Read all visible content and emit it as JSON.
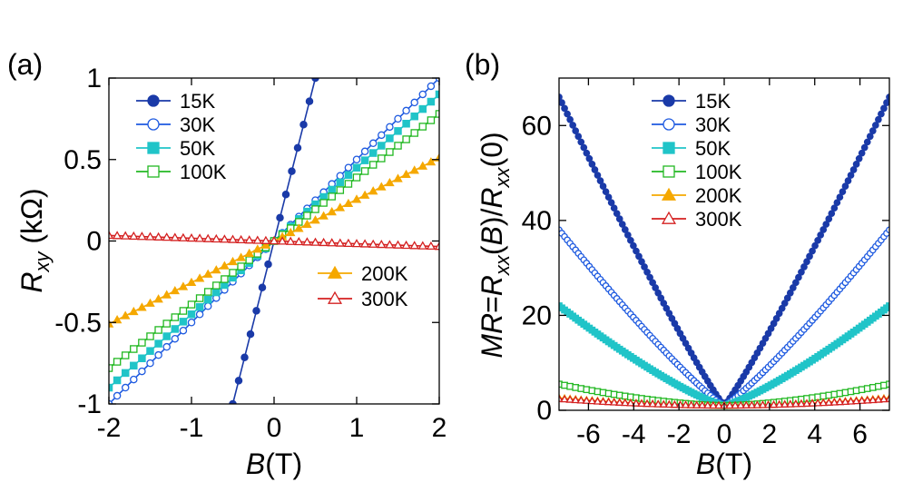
{
  "chart_data": [
    {
      "type": "line",
      "panel_label": "(a)",
      "xlabel": {
        "var": "B",
        "unit": "(T)"
      },
      "ylabel": {
        "var": "R",
        "sub": "xy",
        "unit": " (kΩ)"
      },
      "xlim": [
        -2,
        2
      ],
      "ylim": [
        -1,
        1
      ],
      "xticks": [
        -2,
        -1,
        0,
        1,
        2
      ],
      "xtick_labels": [
        "-2",
        "-1",
        "0",
        "1",
        "2"
      ],
      "yticks": [
        -1,
        -0.5,
        0,
        0.5,
        1
      ],
      "ytick_labels": [
        "-1",
        "-0.5",
        "0",
        "0.5",
        "1"
      ],
      "legend_groups": [
        {
          "position": "top-left",
          "series": [
            0,
            1,
            2,
            3
          ]
        },
        {
          "position": "bottom-right",
          "series": [
            4,
            5
          ]
        }
      ],
      "series": [
        {
          "name": "15K",
          "color": "#1a3aa8",
          "marker": "circle-filled",
          "slope": 2.0,
          "x_range": [
            -0.5,
            0.5
          ],
          "n_points": 15
        },
        {
          "name": "30K",
          "color": "#1e5ae0",
          "marker": "circle-open",
          "slope": 0.5,
          "x_range": [
            -2,
            2
          ],
          "n_points": 41
        },
        {
          "name": "50K",
          "color": "#20c4c8",
          "marker": "square-filled",
          "slope": 0.45,
          "x_range": [
            -2,
            2
          ],
          "n_points": 41
        },
        {
          "name": "100K",
          "color": "#22b822",
          "marker": "square-open",
          "slope": 0.39,
          "x_range": [
            -2,
            2
          ],
          "n_points": 41
        },
        {
          "name": "200K",
          "color": "#f5a800",
          "marker": "triangle-filled",
          "slope": 0.255,
          "x_range": [
            -2,
            2
          ],
          "n_points": 41
        },
        {
          "name": "300K",
          "color": "#d42020",
          "marker": "triangle-open",
          "slope": -0.017,
          "x_range": [
            -2,
            2
          ],
          "n_points": 41
        }
      ]
    },
    {
      "type": "line",
      "panel_label": "(b)",
      "xlabel": {
        "var": "B",
        "unit": "(T)"
      },
      "ylabel": {
        "text": "MR=R_xx(B)/R_xx(0)"
      },
      "xlim": [
        -7.3,
        7.3
      ],
      "ylim": [
        0,
        70
      ],
      "xticks": [
        -6,
        -4,
        -2,
        0,
        2,
        4,
        6
      ],
      "xtick_labels": [
        "-6",
        "-4",
        "-2",
        "0",
        "2",
        "4",
        "6"
      ],
      "yticks": [
        0,
        20,
        40,
        60
      ],
      "ytick_labels": [
        "0",
        "20",
        "40",
        "60"
      ],
      "legend_groups": [
        {
          "position": "top-center",
          "series": [
            0,
            1,
            2,
            3,
            4,
            5
          ]
        }
      ],
      "series": [
        {
          "name": "15K",
          "color": "#1a3aa8",
          "marker": "circle-filled",
          "mr_at_max": 66,
          "power": 1.1,
          "x_range": [
            -7.3,
            7.3
          ],
          "n_points": 121
        },
        {
          "name": "30K",
          "color": "#1e5ae0",
          "marker": "circle-open",
          "mr_at_max": 38,
          "power": 1.15,
          "x_range": [
            -7.3,
            7.3
          ],
          "n_points": 121
        },
        {
          "name": "50K",
          "color": "#20c4c8",
          "marker": "square-filled",
          "mr_at_max": 22,
          "power": 1.25,
          "x_range": [
            -7.3,
            7.3
          ],
          "n_points": 121
        },
        {
          "name": "100K",
          "color": "#22b822",
          "marker": "square-open",
          "mr_at_max": 5.5,
          "power": 1.6,
          "x_range": [
            -7.3,
            7.3
          ],
          "n_points": 61
        },
        {
          "name": "200K",
          "color": "#f5a800",
          "marker": "triangle-filled",
          "mr_at_max": 2.6,
          "power": 1.8,
          "x_range": [
            -7.3,
            7.3
          ],
          "n_points": 61
        },
        {
          "name": "300K",
          "color": "#d42020",
          "marker": "triangle-open",
          "mr_at_max": 2.4,
          "power": 1.8,
          "x_range": [
            -7.3,
            7.3
          ],
          "n_points": 61
        }
      ]
    }
  ]
}
